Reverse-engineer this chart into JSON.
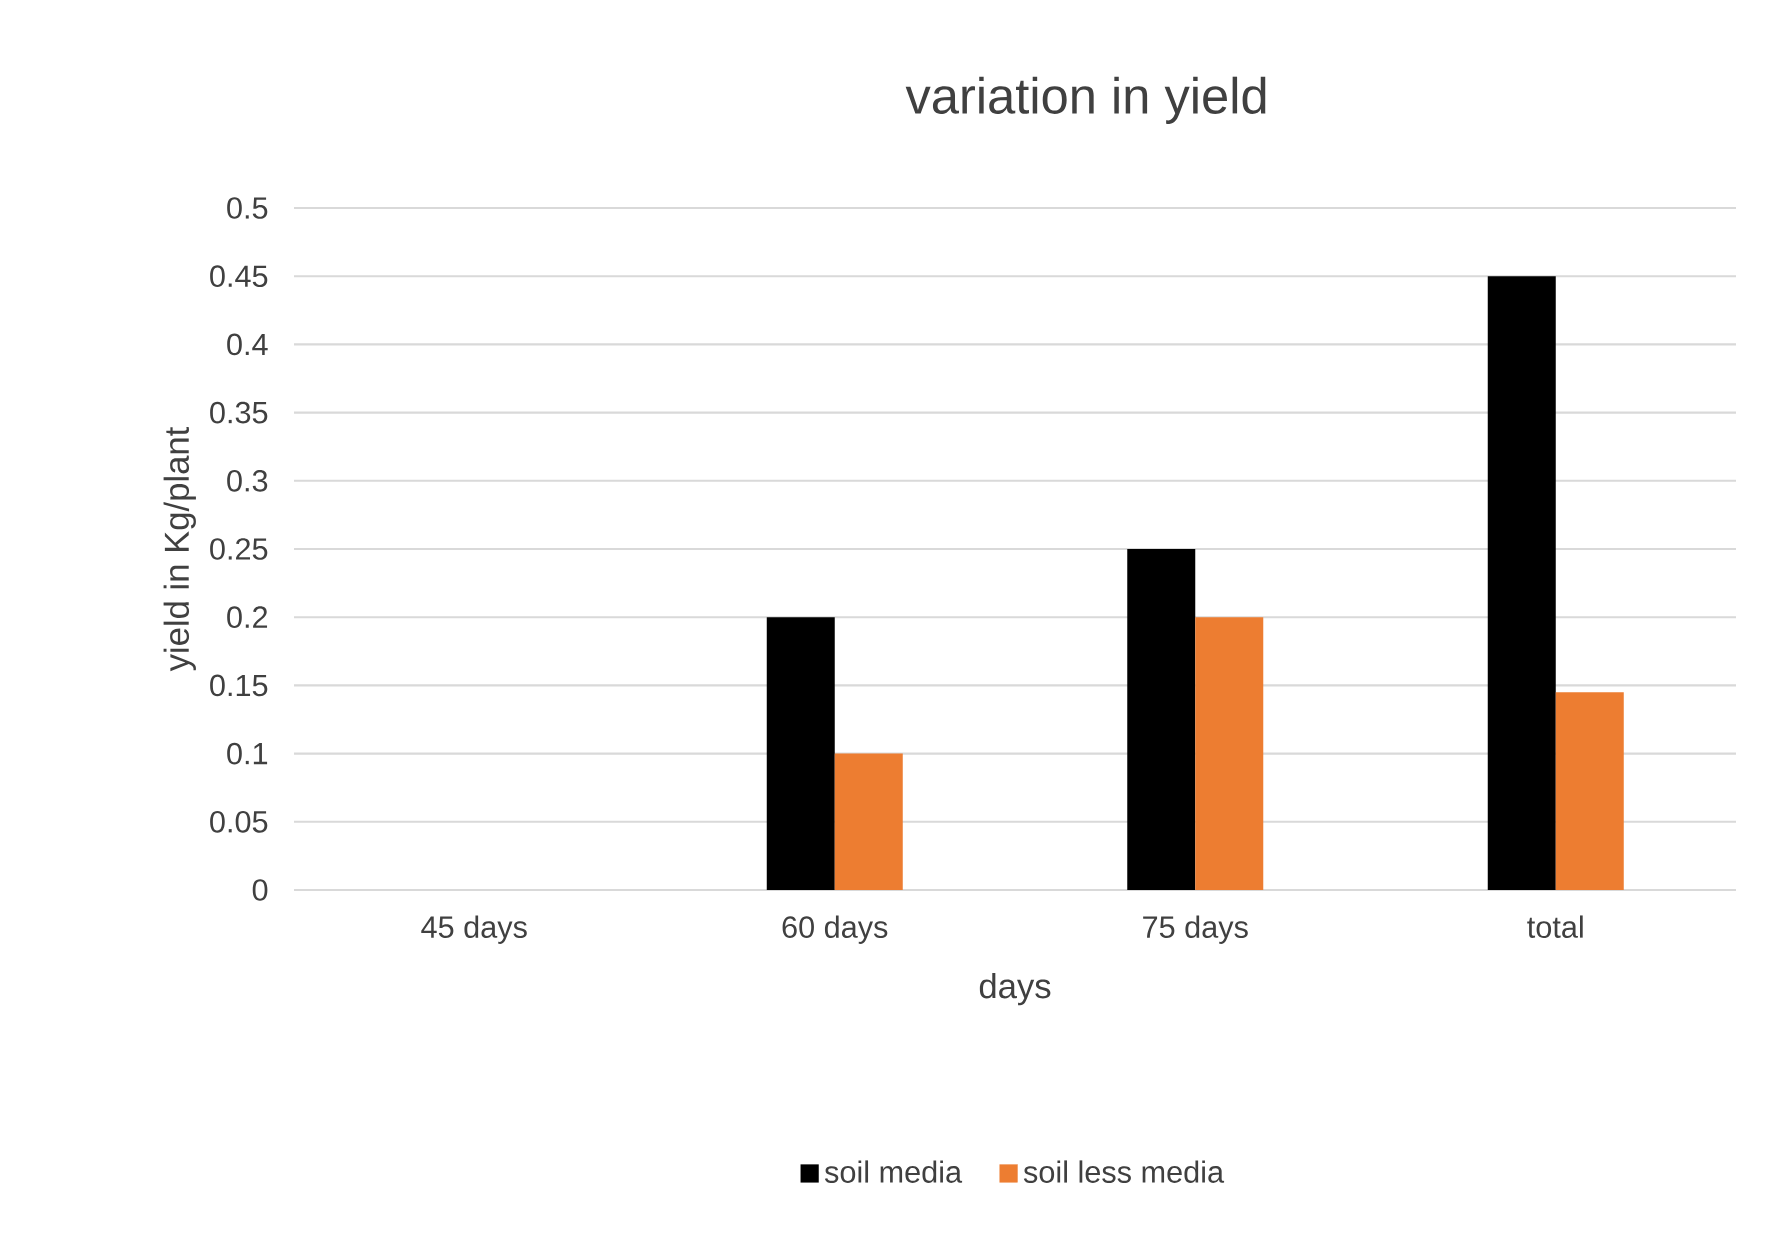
{
  "chart_data": {
    "type": "bar",
    "title": "variation in yield",
    "xlabel": "days",
    "ylabel": "yield in Kg/plant",
    "categories": [
      "45 days",
      "60 days",
      "75 days",
      "total"
    ],
    "series": [
      {
        "name": "soil media",
        "color": "#000000",
        "values": [
          0,
          0.2,
          0.25,
          0.45
        ]
      },
      {
        "name": "soil less media",
        "color": "#ed7d31",
        "values": [
          0,
          0.1,
          0.2,
          0.145
        ]
      }
    ],
    "ylim": [
      0,
      0.5
    ],
    "yticks": [
      0,
      0.05,
      0.1,
      0.15,
      0.2,
      0.25,
      0.3,
      0.35,
      0.4,
      0.45,
      0.5
    ],
    "grid": "y",
    "legend": "bottom"
  }
}
